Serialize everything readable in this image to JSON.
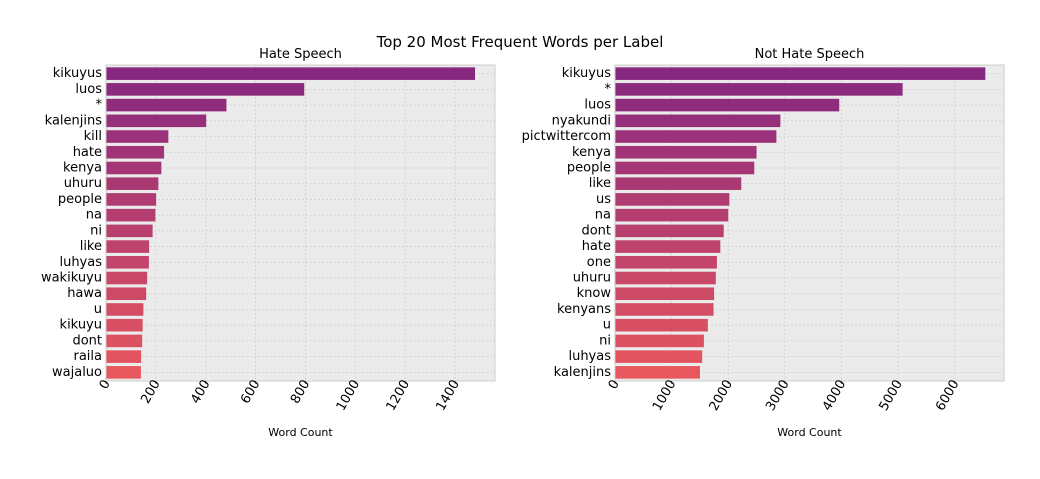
{
  "figure": {
    "suptitle": "Top 20 Most Frequent Words per Label"
  },
  "chart_data": [
    {
      "type": "bar",
      "orientation": "horizontal",
      "title": "Hate Speech",
      "xlabel": "Word Count",
      "ylabel": "",
      "xlim": [
        0,
        1560
      ],
      "xticks": [
        0,
        200,
        400,
        600,
        800,
        1000,
        1200,
        1400
      ],
      "grid": true,
      "categories": [
        "kikuyus",
        "luos",
        "*",
        "kalenjins",
        "kill",
        "hate",
        "kenya",
        "uhuru",
        "people",
        "na",
        "ni",
        "like",
        "luhyas",
        "wakikuyu",
        "hawa",
        "u",
        "kikuyu",
        "dont",
        "raila",
        "wajaluo"
      ],
      "values": [
        1480,
        795,
        483,
        402,
        250,
        233,
        222,
        210,
        201,
        198,
        187,
        173,
        172,
        165,
        161,
        150,
        147,
        145,
        141,
        140
      ]
    },
    {
      "type": "bar",
      "orientation": "horizontal",
      "title": "Not Hate Speech",
      "xlabel": "Word Count",
      "ylabel": "",
      "xlim": [
        0,
        6870
      ],
      "xticks": [
        0,
        1000,
        2000,
        3000,
        4000,
        5000,
        6000
      ],
      "grid": true,
      "categories": [
        "kikuyus",
        "*",
        "luos",
        "nyakundi",
        "pictwittercom",
        "kenya",
        "people",
        "like",
        "us",
        "na",
        "dont",
        "hate",
        "one",
        "uhuru",
        "know",
        "kenyans",
        "u",
        "ni",
        "luhyas",
        "kalenjins"
      ],
      "values": [
        6540,
        5080,
        3960,
        2920,
        2850,
        2500,
        2460,
        2230,
        2020,
        2000,
        1920,
        1860,
        1800,
        1780,
        1750,
        1740,
        1640,
        1570,
        1540,
        1500
      ]
    }
  ]
}
